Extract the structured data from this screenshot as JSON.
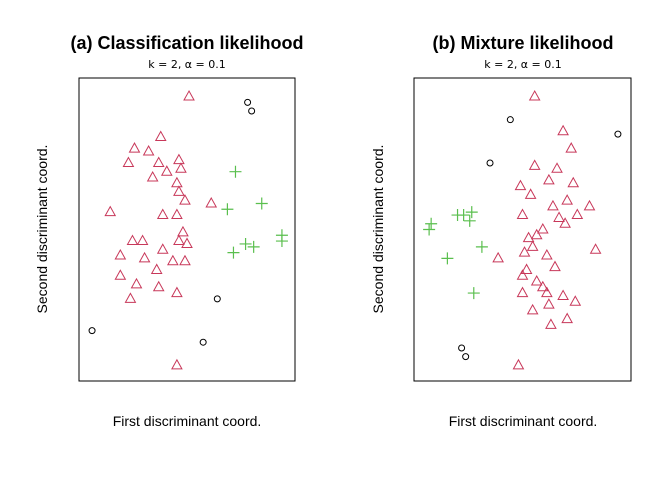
{
  "chart_data": [
    {
      "type": "scatter",
      "title": "(a) Classification likelihood",
      "subtitle": "k = 2, α = 0.1",
      "xlabel": "First discriminant coord.",
      "ylabel": "Second discriminant coord.",
      "xlim": [
        0,
        100
      ],
      "ylim": [
        0,
        100
      ],
      "series": [
        {
          "marker": "triangle",
          "color": "#c8385a",
          "points": [
            [
              51,
              96
            ],
            [
              37,
              82
            ],
            [
              24,
              78
            ],
            [
              31,
              77
            ],
            [
              36,
              73
            ],
            [
              46,
              74
            ],
            [
              47,
              71
            ],
            [
              21,
              73
            ],
            [
              40,
              70
            ],
            [
              45,
              66
            ],
            [
              33,
              68
            ],
            [
              46,
              63
            ],
            [
              49,
              60
            ],
            [
              62,
              59
            ],
            [
              38,
              55
            ],
            [
              12,
              56
            ],
            [
              45,
              55
            ],
            [
              48,
              49
            ],
            [
              28,
              46
            ],
            [
              23,
              46
            ],
            [
              46,
              46
            ],
            [
              38,
              43
            ],
            [
              50,
              45
            ],
            [
              17,
              41
            ],
            [
              29,
              40
            ],
            [
              43,
              39
            ],
            [
              49,
              39
            ],
            [
              35,
              36
            ],
            [
              17,
              34
            ],
            [
              25,
              31
            ],
            [
              36,
              30
            ],
            [
              45,
              28
            ],
            [
              22,
              26
            ],
            [
              45,
              3
            ]
          ]
        },
        {
          "marker": "plus",
          "color": "#5abf4e",
          "points": [
            [
              74,
              70
            ],
            [
              70,
              57
            ],
            [
              87,
              59
            ],
            [
              97,
              48
            ],
            [
              97,
              46
            ],
            [
              79,
              45
            ],
            [
              83,
              44
            ],
            [
              73,
              42
            ]
          ]
        },
        {
          "marker": "circle",
          "color": "#000000",
          "points": [
            [
              80,
              94
            ],
            [
              82,
              91
            ],
            [
              65,
              26
            ],
            [
              3,
              15
            ],
            [
              58,
              11
            ]
          ]
        }
      ]
    },
    {
      "type": "scatter",
      "title": "(b) Mixture likelihood",
      "subtitle": "k = 2, α = 0.1",
      "xlabel": "First discriminant coord.",
      "ylabel": "Second discriminant coord.",
      "xlim": [
        0,
        100
      ],
      "ylim": [
        0,
        100
      ],
      "series": [
        {
          "marker": "triangle",
          "color": "#c8385a",
          "points": [
            [
              56,
              96
            ],
            [
              70,
              84
            ],
            [
              74,
              78
            ],
            [
              56,
              72
            ],
            [
              67,
              71
            ],
            [
              63,
              67
            ],
            [
              75,
              66
            ],
            [
              49,
              65
            ],
            [
              54,
              62
            ],
            [
              72,
              60
            ],
            [
              83,
              58
            ],
            [
              65,
              58
            ],
            [
              68,
              54
            ],
            [
              50,
              55
            ],
            [
              71,
              52
            ],
            [
              77,
              55
            ],
            [
              60,
              50
            ],
            [
              57,
              48
            ],
            [
              53,
              47
            ],
            [
              55,
              44
            ],
            [
              86,
              43
            ],
            [
              51,
              42
            ],
            [
              62,
              41
            ],
            [
              38,
              40
            ],
            [
              66,
              37
            ],
            [
              52,
              36
            ],
            [
              50,
              34
            ],
            [
              57,
              32
            ],
            [
              60,
              30
            ],
            [
              50,
              28
            ],
            [
              62,
              28
            ],
            [
              70,
              27
            ],
            [
              76,
              25
            ],
            [
              63,
              24
            ],
            [
              55,
              22
            ],
            [
              72,
              19
            ],
            [
              64,
              17
            ],
            [
              48,
              3
            ]
          ]
        },
        {
          "marker": "plus",
          "color": "#5abf4e",
          "points": [
            [
              18,
              55
            ],
            [
              21,
              55
            ],
            [
              25,
              56
            ],
            [
              24,
              53
            ],
            [
              30,
              44
            ],
            [
              5,
              52
            ],
            [
              4,
              50
            ],
            [
              13,
              40
            ],
            [
              26,
              28
            ]
          ]
        },
        {
          "marker": "circle",
          "color": "#000000",
          "points": [
            [
              44,
              88
            ],
            [
              97,
              83
            ],
            [
              34,
              73
            ],
            [
              20,
              9
            ],
            [
              22,
              6
            ]
          ]
        }
      ]
    }
  ]
}
